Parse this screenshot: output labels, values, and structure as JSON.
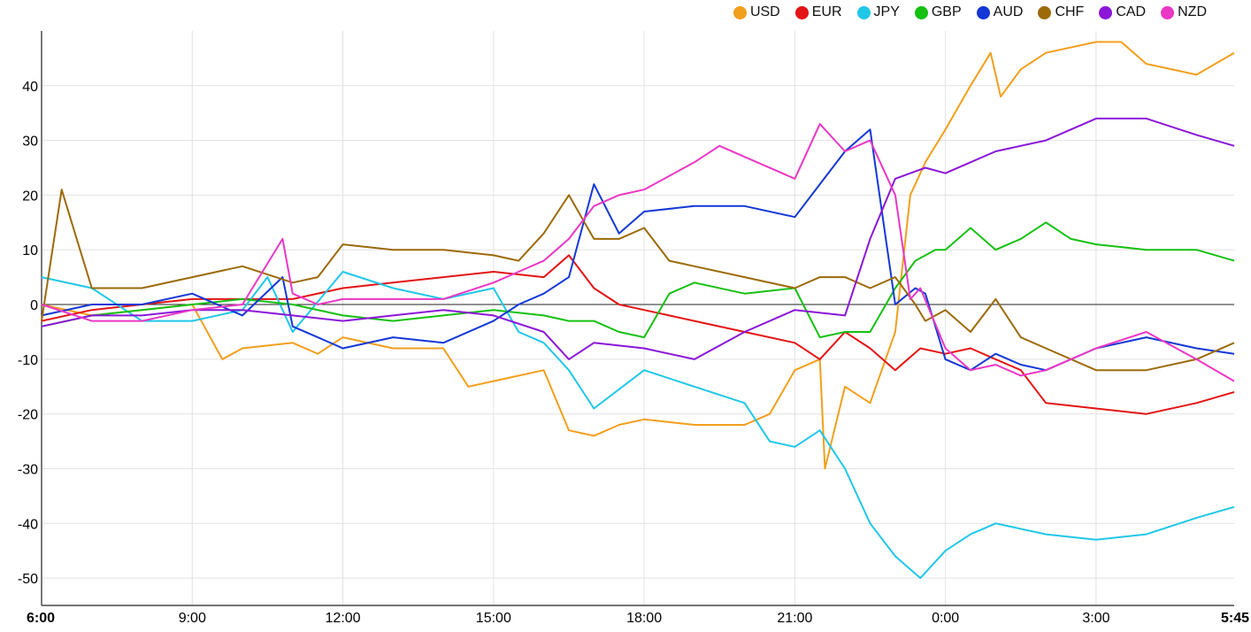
{
  "chart_data": {
    "type": "line",
    "title": "",
    "xlabel": "",
    "ylabel": "",
    "ylim": [
      -55,
      50
    ],
    "yticks": [
      -50,
      -40,
      -30,
      -20,
      -10,
      0,
      10,
      20,
      30,
      40
    ],
    "xlim_hours": [
      6,
      29.75
    ],
    "x_tick_labels": [
      "6:00",
      "9:00",
      "12:00",
      "15:00",
      "18:00",
      "21:00",
      "0:00",
      "3:00",
      "5:45"
    ],
    "x_tick_bold": [
      "6:00",
      "5:45"
    ],
    "grid": true,
    "legend_position": "top-right",
    "series": [
      {
        "name": "USD",
        "color": "#f29f1d",
        "x": [
          6,
          7,
          8,
          9,
          9.6,
          10,
          11,
          11.5,
          12,
          13,
          14,
          14.5,
          15,
          16,
          16.5,
          17,
          17.5,
          18,
          19,
          20,
          20.5,
          21,
          21.5,
          21.6,
          22,
          22.5,
          23,
          23.3,
          23.6,
          24,
          24.5,
          24.9,
          25.1,
          25.5,
          26,
          27,
          27.5,
          28,
          29,
          29.75
        ],
        "y": [
          0,
          -2,
          -1,
          0,
          -10,
          -8,
          -7,
          -9,
          -6,
          -8,
          -8,
          -15,
          -14,
          -12,
          -23,
          -24,
          -22,
          -21,
          -22,
          -22,
          -20,
          -12,
          -10,
          -30,
          -15,
          -18,
          -5,
          20,
          26,
          32,
          40,
          46,
          38,
          43,
          46,
          48,
          48,
          44,
          42,
          46
        ]
      },
      {
        "name": "EUR",
        "color": "#e31414",
        "x": [
          6,
          7,
          8,
          9,
          10,
          11,
          12,
          13,
          14,
          15,
          16,
          16.5,
          17,
          17.5,
          18,
          19,
          20,
          21,
          21.5,
          22,
          22.5,
          23,
          23.5,
          24,
          24.5,
          25,
          25.5,
          26,
          27,
          28,
          29,
          29.75
        ],
        "y": [
          -3,
          -1,
          0,
          1,
          1,
          1,
          3,
          4,
          5,
          6,
          5,
          9,
          3,
          0,
          -1,
          -3,
          -5,
          -7,
          -10,
          -5,
          -8,
          -12,
          -8,
          -9,
          -8,
          -10,
          -12,
          -18,
          -19,
          -20,
          -18,
          -16
        ]
      },
      {
        "name": "JPY",
        "color": "#1fc7e8",
        "x": [
          6,
          7,
          8,
          9,
          10,
          10.5,
          11,
          12,
          13,
          14,
          15,
          15.5,
          16,
          16.5,
          17,
          18,
          19,
          20,
          20.5,
          21,
          21.5,
          22,
          22.5,
          23,
          23.5,
          24,
          24.5,
          25,
          26,
          27,
          28,
          29,
          29.75
        ],
        "y": [
          5,
          3,
          -3,
          -3,
          -1,
          5,
          -5,
          6,
          3,
          1,
          3,
          -5,
          -7,
          -12,
          -19,
          -12,
          -15,
          -18,
          -25,
          -26,
          -23,
          -30,
          -40,
          -46,
          -50,
          -45,
          -42,
          -40,
          -42,
          -43,
          -42,
          -39,
          -37
        ]
      },
      {
        "name": "GBP",
        "color": "#16c012",
        "x": [
          6,
          7,
          8,
          9,
          10,
          11,
          12,
          13,
          14,
          15,
          16,
          16.5,
          17,
          17.5,
          18,
          18.5,
          19,
          20,
          21,
          21.5,
          22,
          22.5,
          23,
          23.4,
          23.8,
          24,
          24.5,
          25,
          25.5,
          26,
          26.5,
          27,
          28,
          29,
          29.75
        ],
        "y": [
          -4,
          -2,
          -1,
          0,
          1,
          0,
          -2,
          -3,
          -2,
          -1,
          -2,
          -3,
          -3,
          -5,
          -6,
          2,
          4,
          2,
          3,
          -6,
          -5,
          -5,
          3,
          8,
          10,
          10,
          14,
          10,
          12,
          15,
          12,
          11,
          10,
          10,
          8
        ]
      },
      {
        "name": "AUD",
        "color": "#1338d6",
        "x": [
          6,
          7,
          8,
          9,
          10,
          10.8,
          11,
          11.5,
          12,
          13,
          14,
          15,
          15.5,
          16,
          16.5,
          17,
          17.5,
          18,
          19,
          20,
          21,
          21.5,
          22,
          22.5,
          23,
          23.4,
          23.6,
          24,
          24.5,
          25,
          25.5,
          26,
          27,
          28,
          29,
          29.75
        ],
        "y": [
          -2,
          0,
          0,
          2,
          -2,
          5,
          -4,
          -6,
          -8,
          -6,
          -7,
          -3,
          0,
          2,
          5,
          22,
          13,
          17,
          18,
          18,
          16,
          22,
          28,
          32,
          0,
          3,
          2,
          -10,
          -12,
          -9,
          -11,
          -12,
          -8,
          -6,
          -8,
          -9
        ]
      },
      {
        "name": "CHF",
        "color": "#9c6a09",
        "x": [
          6,
          6.4,
          6.7,
          7,
          8,
          9,
          10,
          11,
          11.5,
          12,
          13,
          14,
          15,
          15.5,
          16,
          16.5,
          17,
          17.5,
          18,
          18.5,
          19,
          20,
          21,
          21.5,
          22,
          22.5,
          23,
          23.4,
          23.6,
          24,
          24.5,
          25,
          25.5,
          26,
          27,
          28,
          29,
          29.75
        ],
        "y": [
          -3,
          21,
          12,
          3,
          3,
          5,
          7,
          4,
          5,
          11,
          10,
          10,
          9,
          8,
          13,
          20,
          12,
          12,
          14,
          8,
          7,
          5,
          3,
          5,
          5,
          3,
          5,
          0,
          -3,
          -1,
          -5,
          1,
          -6,
          -8,
          -12,
          -12,
          -10,
          -7
        ]
      },
      {
        "name": "CAD",
        "color": "#8b16d8",
        "x": [
          6,
          7,
          8,
          9,
          10,
          11,
          12,
          13,
          14,
          15,
          16,
          16.5,
          17,
          18,
          19,
          20,
          21,
          22,
          22.5,
          23,
          23.3,
          23.6,
          24,
          24.5,
          25,
          26,
          27,
          28,
          29,
          29.75
        ],
        "y": [
          -4,
          -2,
          -2,
          -1,
          -1,
          -2,
          -3,
          -2,
          -1,
          -2,
          -5,
          -10,
          -7,
          -8,
          -10,
          -5,
          -1,
          -2,
          12,
          23,
          24,
          25,
          24,
          26,
          28,
          30,
          34,
          34,
          31,
          29
        ]
      },
      {
        "name": "NZD",
        "color": "#ea37c5",
        "x": [
          6,
          7,
          8,
          9,
          10,
          10.8,
          11,
          11.5,
          12,
          13,
          14,
          15,
          15.5,
          16,
          16.5,
          17,
          17.5,
          18,
          19,
          19.5,
          20,
          21,
          21.5,
          22,
          22.5,
          23,
          23.3,
          23.5,
          24,
          24.5,
          25,
          25.5,
          26,
          27,
          28,
          29,
          29.75
        ],
        "y": [
          0,
          -3,
          -3,
          -1,
          0,
          12,
          2,
          0,
          1,
          1,
          1,
          4,
          6,
          8,
          12,
          18,
          20,
          21,
          26,
          29,
          27,
          23,
          33,
          28,
          30,
          20,
          1,
          3,
          -8,
          -12,
          -11,
          -13,
          -12,
          -8,
          -5,
          -10,
          -14
        ]
      }
    ]
  }
}
